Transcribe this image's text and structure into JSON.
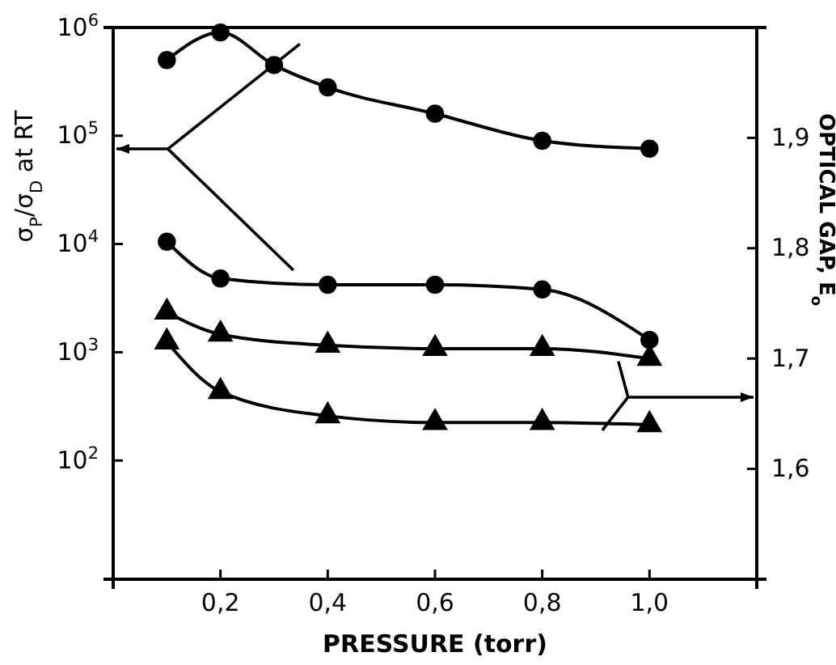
{
  "chart_data": {
    "type": "line",
    "xlabel": "PRESSURE (torr)",
    "ylabel": "σ$_{P}$/σ$_{D}$ at RT",
    "y2label": "OPTICAL GAP, E$_{o}$",
    "x": [
      0.1,
      0.2,
      0.3,
      0.4,
      0.6,
      0.8,
      1.0
    ],
    "xlim": [
      0,
      1.2
    ],
    "xticks": [
      {
        "value": 0.2,
        "label": "0,2"
      },
      {
        "value": 0.4,
        "label": "0,4"
      },
      {
        "value": 0.6,
        "label": "0,6"
      },
      {
        "value": 0.8,
        "label": "0,8"
      },
      {
        "value": 1.0,
        "label": "1,0"
      }
    ],
    "log": "y",
    "ylim": [
      8,
      1000000
    ],
    "yticks": [
      {
        "value": 100,
        "label": "10$^{2}$"
      },
      {
        "value": 1000,
        "label": "10$^{3}$"
      },
      {
        "value": 10000,
        "label": "10$^{4}$"
      },
      {
        "value": 100000,
        "label": "10$^{5}$"
      },
      {
        "value": 1000000,
        "label": "10$^{6}$"
      }
    ],
    "y2lim": [
      1.5,
      2.0
    ],
    "y2ticks": [
      {
        "value": 1.6,
        "label": "1,6"
      },
      {
        "value": 1.7,
        "label": "1,7"
      },
      {
        "value": 1.8,
        "label": "1,8"
      },
      {
        "value": 1.9,
        "label": "1,9"
      }
    ],
    "grid": false,
    "line_style": "solid",
    "series": [
      {
        "color": "#000000",
        "marker": "circle",
        "values": [
          500000,
          900000,
          450000,
          280000,
          160000,
          90000,
          76000
        ]
      },
      {
        "color": "#000000",
        "marker": "circle",
        "x": [
          0.1,
          0.2,
          0.4,
          0.6,
          0.8,
          1.0
        ],
        "values": [
          10500,
          4800,
          4200,
          4200,
          3800,
          1300
        ]
      },
      {
        "color": "#000000",
        "marker": "triangle",
        "axis": "y2",
        "x": [
          0.1,
          0.2,
          0.4,
          0.6,
          0.8,
          1.0
        ],
        "values": [
          1.742,
          1.722,
          1.712,
          1.709,
          1.709,
          1.7
        ]
      },
      {
        "color": "#000000",
        "marker": "triangle",
        "axis": "y2",
        "x": [
          0.1,
          0.2,
          0.4,
          0.6,
          0.8,
          1.0
        ],
        "values": [
          1.715,
          1.67,
          1.648,
          1.642,
          1.642,
          1.64
        ]
      }
    ]
  }
}
